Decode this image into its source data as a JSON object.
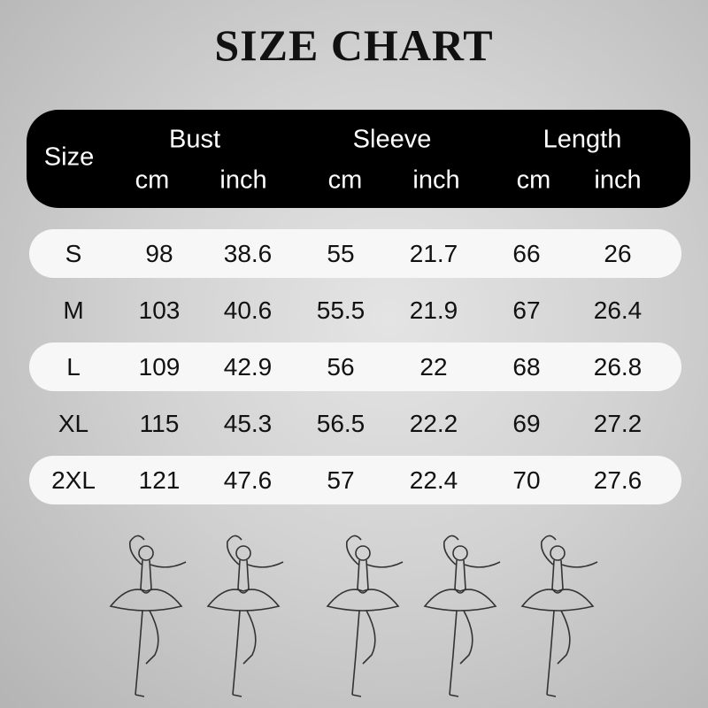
{
  "title": "SIZE CHART",
  "header": {
    "size": "Size",
    "groups": [
      "Bust",
      "Sleeve",
      "Length"
    ],
    "units": [
      "cm",
      "inch",
      "cm",
      "inch",
      "cm",
      "inch"
    ]
  },
  "rows": [
    [
      "S",
      "98",
      "38.6",
      "55",
      "21.7",
      "66",
      "26"
    ],
    [
      "M",
      "103",
      "40.6",
      "55.5",
      "21.9",
      "67",
      "26.4"
    ],
    [
      "L",
      "109",
      "42.9",
      "56",
      "22",
      "68",
      "26.8"
    ],
    [
      "XL",
      "115",
      "45.3",
      "56.5",
      "22.2",
      "69",
      "27.2"
    ],
    [
      "2XL",
      "121",
      "47.6",
      "57",
      "22.4",
      "70",
      "27.6"
    ]
  ],
  "icons": [
    "ballerina-icon",
    "ballerina-icon",
    "ballerina-icon",
    "ballerina-icon",
    "ballerina-icon"
  ]
}
